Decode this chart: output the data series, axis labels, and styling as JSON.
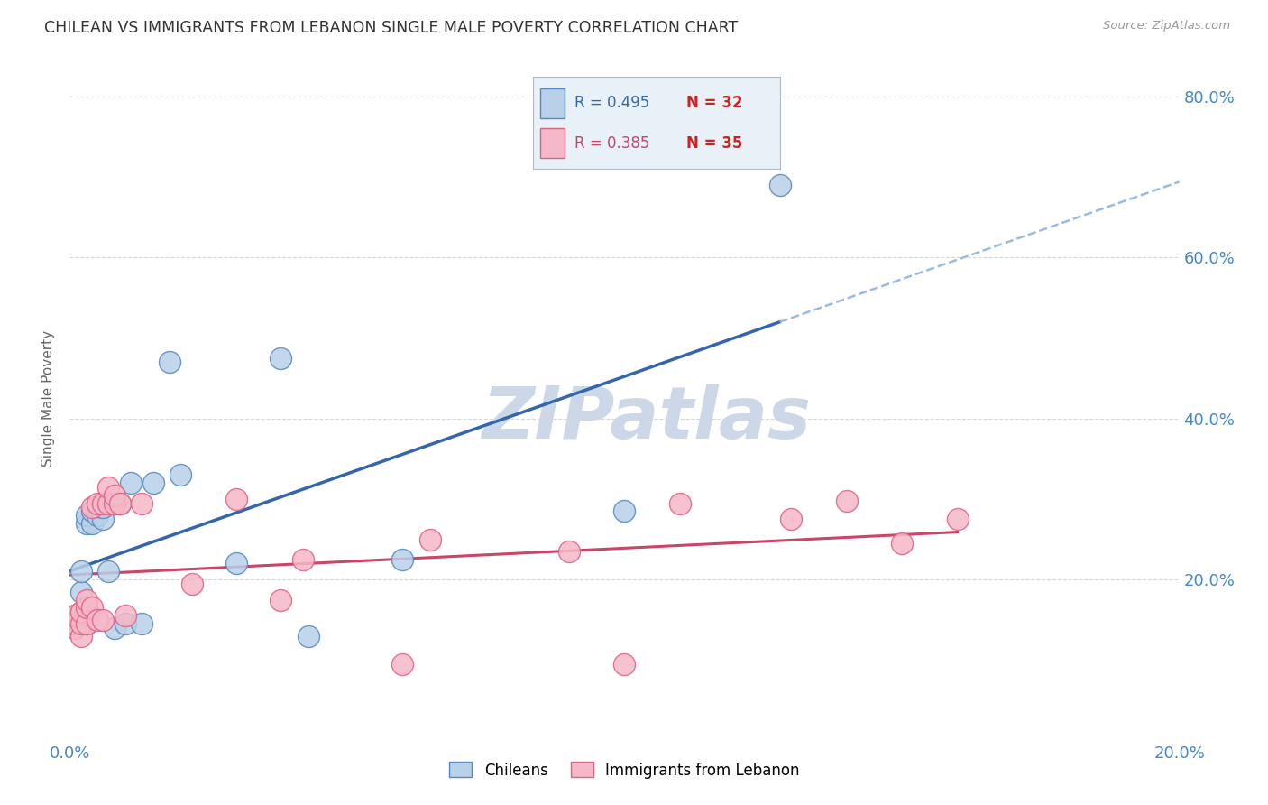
{
  "title": "CHILEAN VS IMMIGRANTS FROM LEBANON SINGLE MALE POVERTY CORRELATION CHART",
  "source": "Source: ZipAtlas.com",
  "ylabel_label": "Single Male Poverty",
  "x_min": 0.0,
  "x_max": 0.2,
  "y_min": 0.0,
  "y_max": 0.85,
  "x_ticks": [
    0.0,
    0.05,
    0.1,
    0.15,
    0.2
  ],
  "x_tick_labels": [
    "0.0%",
    "",
    "",
    "",
    "20.0%"
  ],
  "y_ticks": [
    0.0,
    0.2,
    0.4,
    0.6,
    0.8
  ],
  "y_tick_labels": [
    "",
    "20.0%",
    "40.0%",
    "60.0%",
    "80.0%"
  ],
  "chileans_x": [
    0.001,
    0.001,
    0.001,
    0.002,
    0.002,
    0.002,
    0.002,
    0.003,
    0.003,
    0.003,
    0.003,
    0.004,
    0.004,
    0.005,
    0.005,
    0.006,
    0.006,
    0.007,
    0.008,
    0.009,
    0.01,
    0.011,
    0.013,
    0.015,
    0.018,
    0.02,
    0.03,
    0.038,
    0.043,
    0.06,
    0.1,
    0.128
  ],
  "chileans_y": [
    0.145,
    0.15,
    0.155,
    0.145,
    0.16,
    0.185,
    0.21,
    0.145,
    0.165,
    0.27,
    0.28,
    0.27,
    0.285,
    0.28,
    0.29,
    0.275,
    0.29,
    0.21,
    0.14,
    0.295,
    0.145,
    0.32,
    0.145,
    0.32,
    0.47,
    0.33,
    0.22,
    0.475,
    0.13,
    0.225,
    0.285,
    0.69
  ],
  "lebanon_x": [
    0.001,
    0.001,
    0.001,
    0.002,
    0.002,
    0.002,
    0.003,
    0.003,
    0.003,
    0.004,
    0.004,
    0.005,
    0.005,
    0.006,
    0.006,
    0.007,
    0.007,
    0.008,
    0.008,
    0.009,
    0.01,
    0.013,
    0.022,
    0.03,
    0.038,
    0.042,
    0.06,
    0.065,
    0.09,
    0.1,
    0.11,
    0.13,
    0.14,
    0.15,
    0.16
  ],
  "lebanon_y": [
    0.14,
    0.145,
    0.155,
    0.13,
    0.145,
    0.16,
    0.145,
    0.165,
    0.175,
    0.165,
    0.29,
    0.15,
    0.295,
    0.15,
    0.295,
    0.295,
    0.315,
    0.295,
    0.305,
    0.295,
    0.155,
    0.295,
    0.195,
    0.3,
    0.175,
    0.225,
    0.095,
    0.25,
    0.235,
    0.095,
    0.295,
    0.275,
    0.298,
    0.245,
    0.275
  ],
  "chileans_color": "#b8d0e8",
  "lebanon_color": "#f5b8c8",
  "chileans_edge_color": "#5588bb",
  "lebanon_edge_color": "#e06080",
  "trend_chileans_color": "#3366aa",
  "trend_lebanon_color": "#cc4466",
  "trend_extend_color": "#99bbdd",
  "R_chileans": 0.495,
  "N_chileans": 32,
  "R_lebanon": 0.385,
  "N_lebanon": 35,
  "background_color": "#ffffff",
  "grid_color": "#cccccc",
  "axis_label_color": "#4488cc",
  "title_color": "#333333",
  "watermark": "ZIPatlas",
  "watermark_color": "#ccd8e8",
  "legend_box_color": "#e8f0f8",
  "legend_box_edge": "#aabbcc"
}
